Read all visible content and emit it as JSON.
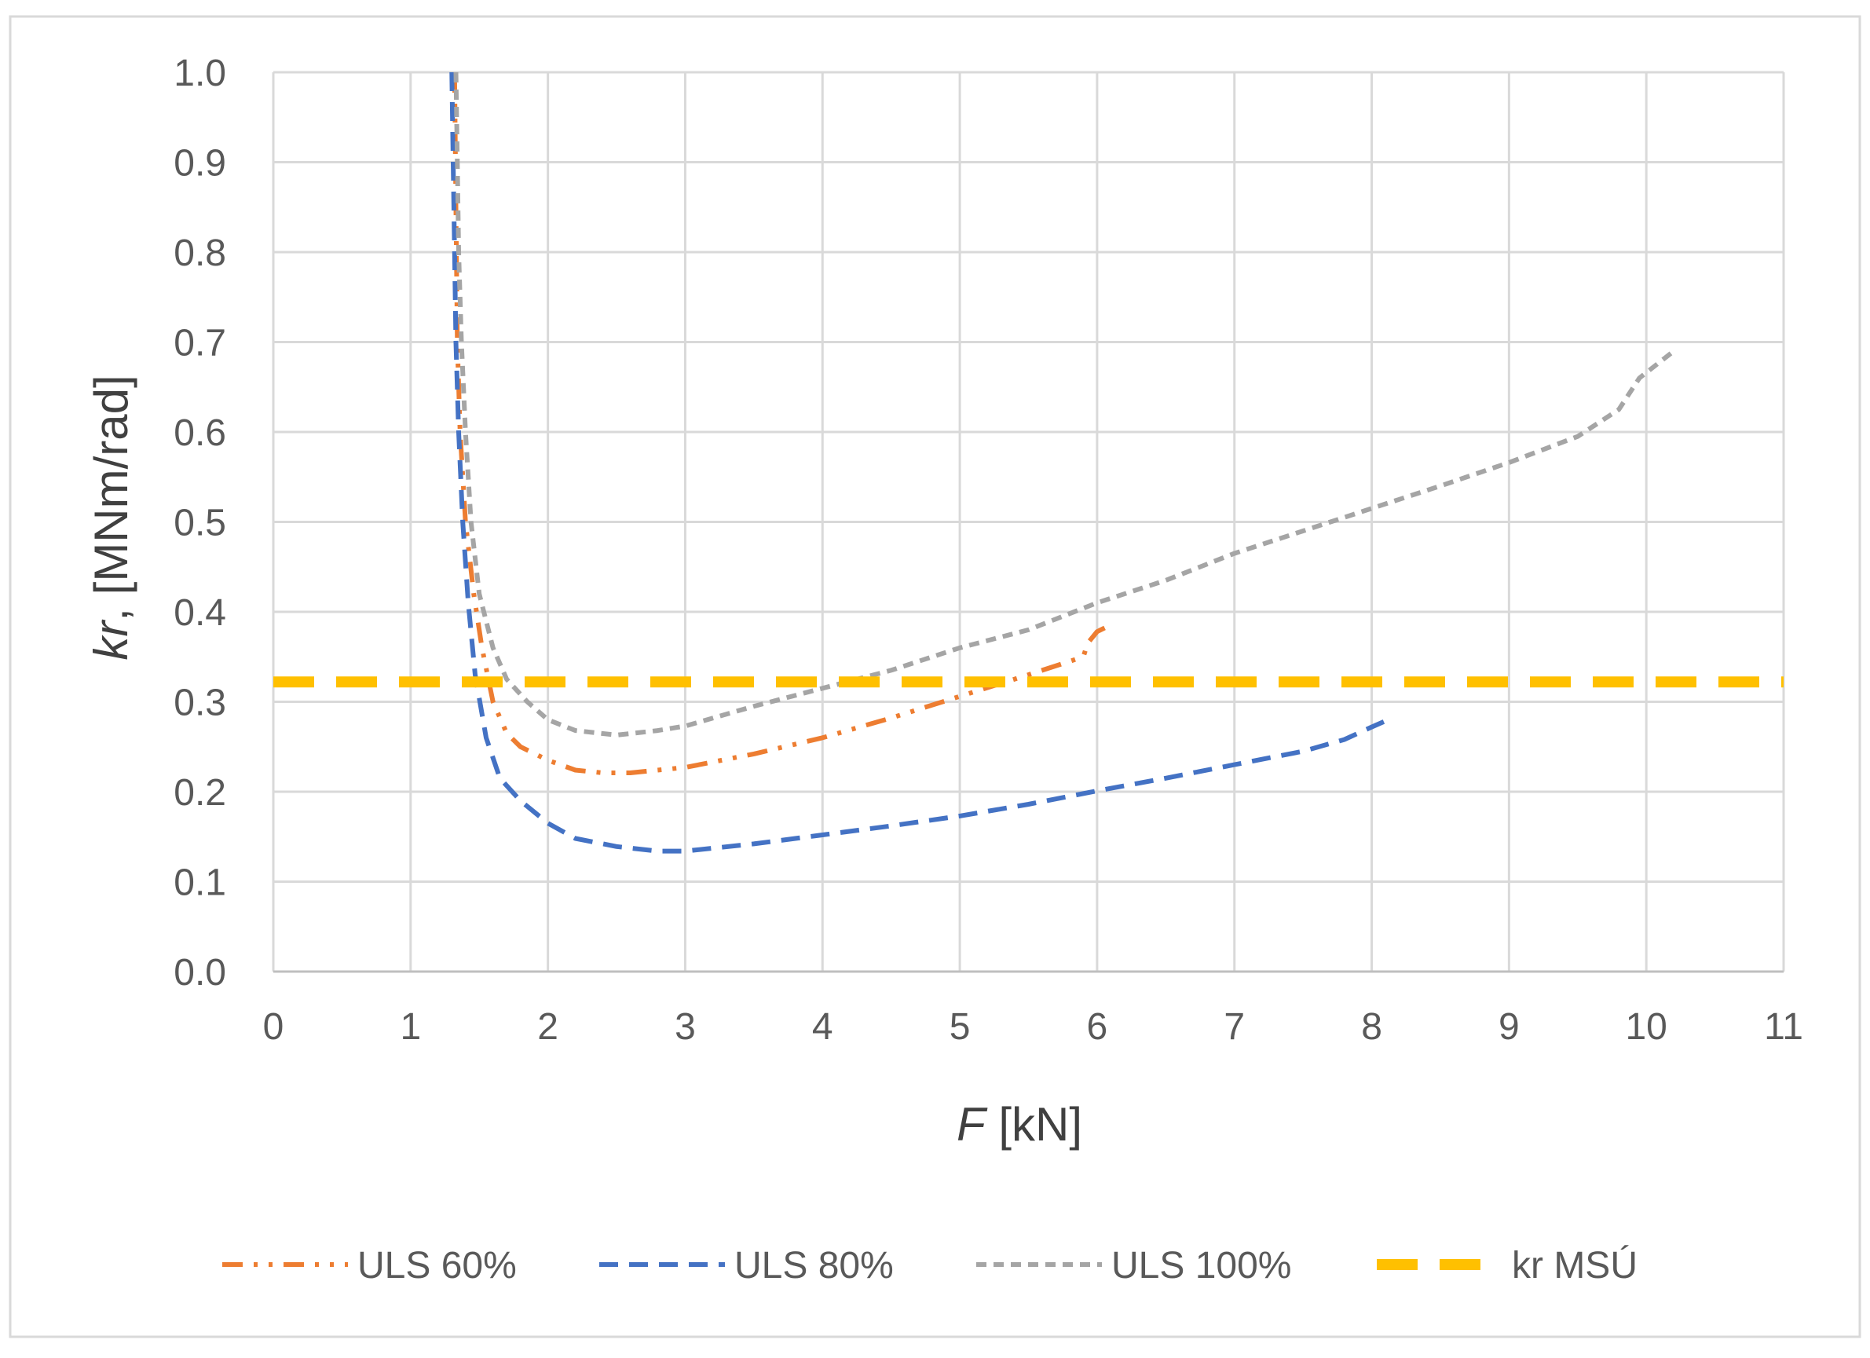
{
  "chart_data": {
    "type": "line",
    "xlabel": {
      "italic": "F",
      "rest": " [kN]"
    },
    "ylabel": {
      "italic": "kr",
      "rest": ", [MNm/rad]"
    },
    "xlim": [
      0,
      11
    ],
    "ylim": [
      0,
      1.0
    ],
    "x_ticks": [
      "0",
      "1",
      "2",
      "3",
      "4",
      "5",
      "6",
      "7",
      "8",
      "9",
      "10",
      "11"
    ],
    "y_ticks": [
      "0.0",
      "0.1",
      "0.2",
      "0.3",
      "0.4",
      "0.5",
      "0.6",
      "0.7",
      "0.8",
      "0.9",
      "1.0"
    ],
    "grid": true,
    "legend_position": "bottom",
    "series": [
      {
        "name": "ULS 60%",
        "color": "#ED7D31",
        "dash": "dash-dot-dot",
        "points": [
          [
            1.32,
            1.0
          ],
          [
            1.33,
            0.85
          ],
          [
            1.34,
            0.7
          ],
          [
            1.36,
            0.6
          ],
          [
            1.4,
            0.5
          ],
          [
            1.46,
            0.42
          ],
          [
            1.52,
            0.36
          ],
          [
            1.6,
            0.3
          ],
          [
            1.7,
            0.265
          ],
          [
            1.8,
            0.25
          ],
          [
            2.0,
            0.235
          ],
          [
            2.2,
            0.224
          ],
          [
            2.4,
            0.221
          ],
          [
            2.6,
            0.221
          ],
          [
            2.8,
            0.224
          ],
          [
            3.0,
            0.227
          ],
          [
            3.2,
            0.233
          ],
          [
            3.5,
            0.242
          ],
          [
            4.0,
            0.26
          ],
          [
            4.5,
            0.282
          ],
          [
            5.0,
            0.306
          ],
          [
            5.5,
            0.33
          ],
          [
            5.9,
            0.35
          ],
          [
            5.93,
            0.365
          ],
          [
            6.0,
            0.378
          ],
          [
            6.08,
            0.384
          ]
        ]
      },
      {
        "name": "ULS 80%",
        "color": "#4472C4",
        "dash": "dash",
        "points": [
          [
            1.3,
            1.0
          ],
          [
            1.31,
            0.9
          ],
          [
            1.32,
            0.8
          ],
          [
            1.33,
            0.7
          ],
          [
            1.35,
            0.6
          ],
          [
            1.38,
            0.5
          ],
          [
            1.42,
            0.41
          ],
          [
            1.47,
            0.33
          ],
          [
            1.55,
            0.26
          ],
          [
            1.65,
            0.215
          ],
          [
            1.8,
            0.19
          ],
          [
            2.0,
            0.165
          ],
          [
            2.2,
            0.148
          ],
          [
            2.5,
            0.139
          ],
          [
            2.8,
            0.134
          ],
          [
            3.0,
            0.134
          ],
          [
            3.5,
            0.142
          ],
          [
            4.0,
            0.152
          ],
          [
            4.5,
            0.162
          ],
          [
            5.0,
            0.173
          ],
          [
            5.5,
            0.186
          ],
          [
            6.0,
            0.201
          ],
          [
            6.5,
            0.215
          ],
          [
            7.0,
            0.23
          ],
          [
            7.5,
            0.245
          ],
          [
            7.8,
            0.258
          ],
          [
            8.0,
            0.272
          ],
          [
            8.12,
            0.28
          ]
        ]
      },
      {
        "name": "ULS 100%",
        "color": "#A5A5A5",
        "dash": "short-dash",
        "points": [
          [
            1.33,
            1.0
          ],
          [
            1.34,
            0.9
          ],
          [
            1.35,
            0.8
          ],
          [
            1.37,
            0.7
          ],
          [
            1.4,
            0.6
          ],
          [
            1.44,
            0.5
          ],
          [
            1.5,
            0.42
          ],
          [
            1.6,
            0.36
          ],
          [
            1.7,
            0.325
          ],
          [
            1.85,
            0.3
          ],
          [
            2.0,
            0.28
          ],
          [
            2.2,
            0.268
          ],
          [
            2.5,
            0.263
          ],
          [
            2.8,
            0.268
          ],
          [
            3.0,
            0.273
          ],
          [
            3.5,
            0.295
          ],
          [
            4.0,
            0.315
          ],
          [
            4.5,
            0.335
          ],
          [
            5.0,
            0.36
          ],
          [
            5.5,
            0.38
          ],
          [
            6.0,
            0.41
          ],
          [
            6.5,
            0.435
          ],
          [
            7.0,
            0.465
          ],
          [
            7.5,
            0.49
          ],
          [
            8.0,
            0.515
          ],
          [
            8.5,
            0.54
          ],
          [
            9.0,
            0.566
          ],
          [
            9.5,
            0.595
          ],
          [
            9.8,
            0.625
          ],
          [
            9.95,
            0.66
          ],
          [
            10.2,
            0.69
          ]
        ]
      },
      {
        "name": "kr MSÚ",
        "color": "#FFC000",
        "dash": "long-dash",
        "points": [
          [
            0,
            0.322
          ],
          [
            11,
            0.322
          ]
        ]
      }
    ]
  }
}
